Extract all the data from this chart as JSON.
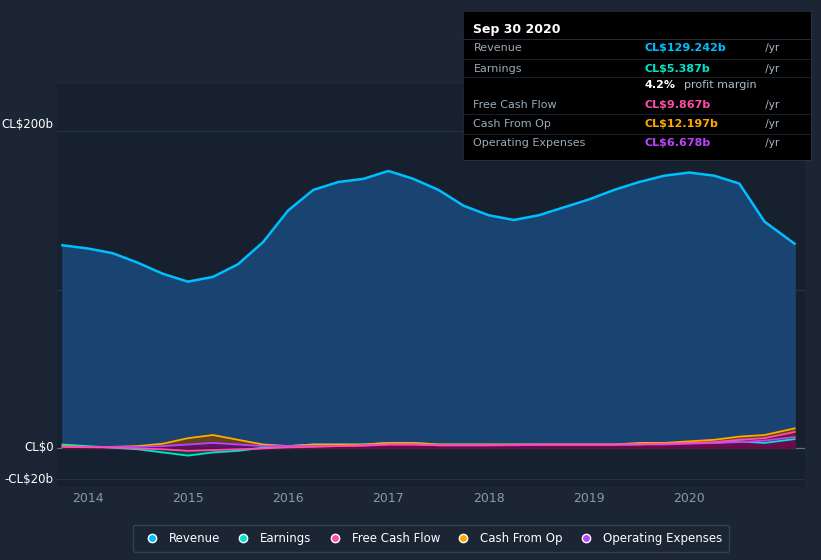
{
  "bg_color": "#1c2534",
  "plot_bg_color": "#16202e",
  "text_color": "#8899aa",
  "title_color": "#ffffff",
  "ylabel_200": "CL$200b",
  "ylabel_zero": "CL$0",
  "ylabel_neg20": "-CL$20b",
  "xlim": [
    2013.7,
    2021.15
  ],
  "ylim": [
    -25,
    230
  ],
  "xtick_positions": [
    2014,
    2015,
    2016,
    2017,
    2018,
    2019,
    2020
  ],
  "xtick_labels": [
    "2014",
    "2015",
    "2016",
    "2017",
    "2018",
    "2019",
    "2020"
  ],
  "revenue_color": "#00bfff",
  "earnings_color": "#00e5cc",
  "fcf_color": "#ff4dac",
  "cashfromop_color": "#ffaa00",
  "opex_color": "#bb44ff",
  "revenue_fill": "#1a4878",
  "earnings_fill": "#005544",
  "fcf_fill": "#7a0040",
  "cashfromop_fill": "#7a4400",
  "opex_fill": "#550088",
  "years": [
    2013.75,
    2014.0,
    2014.25,
    2014.5,
    2014.75,
    2015.0,
    2015.25,
    2015.5,
    2015.75,
    2016.0,
    2016.25,
    2016.5,
    2016.75,
    2017.0,
    2017.25,
    2017.5,
    2017.75,
    2018.0,
    2018.25,
    2018.5,
    2018.75,
    2019.0,
    2019.25,
    2019.5,
    2019.75,
    2020.0,
    2020.25,
    2020.5,
    2020.75,
    2021.05
  ],
  "revenue": [
    128,
    126,
    123,
    117,
    110,
    105,
    108,
    116,
    130,
    150,
    163,
    168,
    170,
    175,
    170,
    163,
    153,
    147,
    144,
    147,
    152,
    157,
    163,
    168,
    172,
    174,
    172,
    167,
    143,
    129
  ],
  "earnings": [
    2,
    1,
    0,
    -1,
    -3,
    -5,
    -3,
    -2,
    0,
    1,
    2,
    2,
    2,
    3,
    3,
    2,
    2,
    2,
    2,
    2,
    2,
    2,
    2,
    2,
    3,
    3,
    3,
    4,
    3,
    5.4
  ],
  "free_cash_flow": [
    0.5,
    0.3,
    0.1,
    -0.5,
    -1,
    -2,
    -1.5,
    -1,
    -0.5,
    0.2,
    0.5,
    1,
    1.2,
    2,
    2,
    1.5,
    1.5,
    1.5,
    1.8,
    2,
    2,
    2,
    2,
    2.2,
    2.5,
    3,
    3.5,
    5,
    6,
    9.9
  ],
  "cash_from_op": [
    1,
    0.5,
    0.5,
    1,
    2.5,
    6,
    8,
    5,
    2,
    1,
    2,
    2,
    2,
    3,
    3,
    2,
    2,
    2,
    2,
    2,
    2,
    2,
    2,
    3,
    3,
    4,
    5,
    7,
    8,
    12.2
  ],
  "operating_expenses": [
    0.5,
    0.4,
    0.5,
    0.5,
    1,
    2,
    3,
    2,
    1,
    1,
    1,
    1,
    1.5,
    2,
    2,
    1.5,
    1.5,
    1.5,
    1.5,
    1.8,
    2,
    2,
    2,
    2,
    2,
    2.5,
    3,
    3.5,
    4.5,
    6.7
  ],
  "tooltip_title": "Sep 30 2020",
  "tooltip_rows": [
    {
      "label": "Revenue",
      "value": "CL$129.242b",
      "color": "#00bfff"
    },
    {
      "label": "Earnings",
      "value": "CL$5.387b",
      "color": "#00e5cc"
    },
    {
      "label": "",
      "value": "4.2% profit margin",
      "color": "#cccccc"
    },
    {
      "label": "Free Cash Flow",
      "value": "CL$9.867b",
      "color": "#ff4dac"
    },
    {
      "label": "Cash From Op",
      "value": "CL$12.197b",
      "color": "#ffaa00"
    },
    {
      "label": "Operating Expenses",
      "value": "CL$6.678b",
      "color": "#bb44ff"
    }
  ],
  "legend_items": [
    {
      "label": "Revenue",
      "color": "#00bfff"
    },
    {
      "label": "Earnings",
      "color": "#00e5cc"
    },
    {
      "label": "Free Cash Flow",
      "color": "#ff4dac"
    },
    {
      "label": "Cash From Op",
      "color": "#ffaa00"
    },
    {
      "label": "Operating Expenses",
      "color": "#bb44ff"
    }
  ]
}
